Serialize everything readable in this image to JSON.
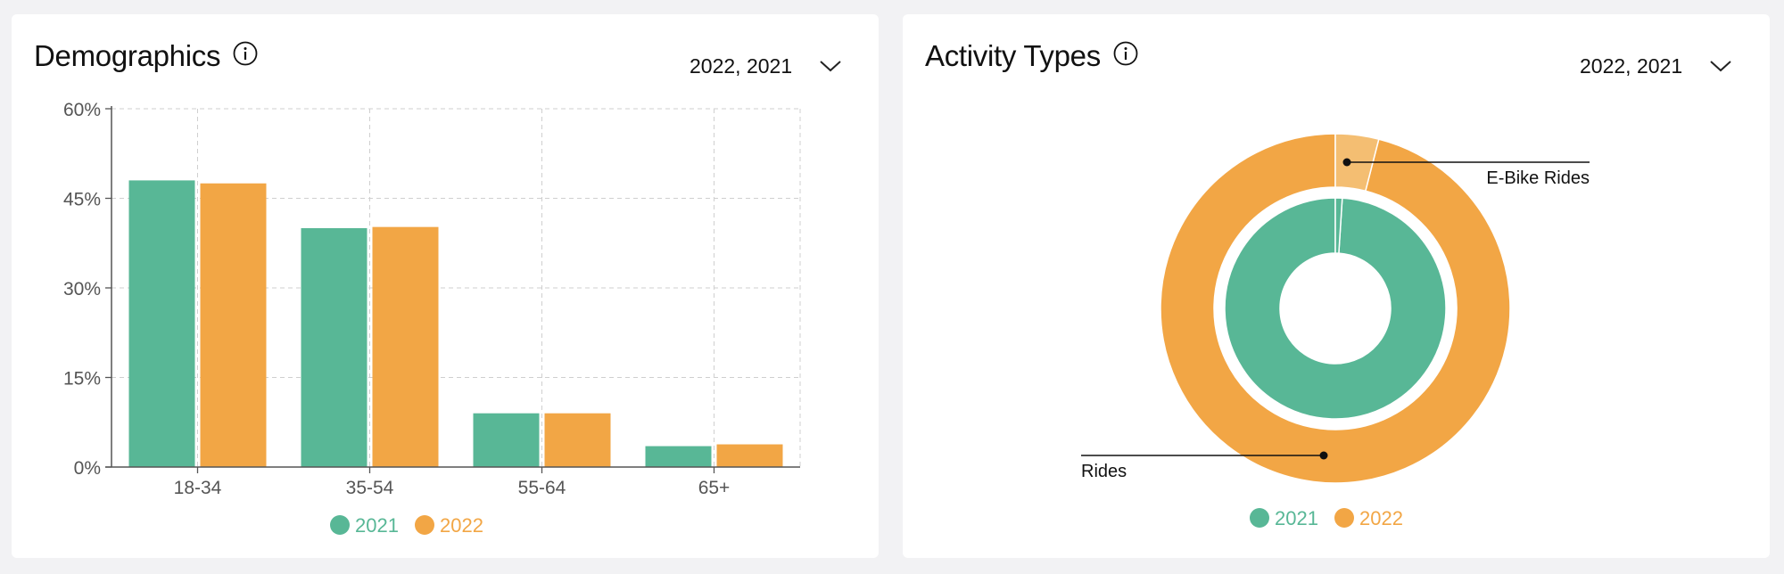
{
  "colors": {
    "c2021": "#58b796",
    "c2022": "#f2a645",
    "c2022_light": "#f4be72"
  },
  "demographics": {
    "title": "Demographics",
    "info_icon": "info-circle-icon",
    "filter_value": "2022, 2021",
    "filter_icon": "chevron-down-icon"
  },
  "activity": {
    "title": "Activity Types",
    "info_icon": "info-circle-icon",
    "filter_value": "2022, 2021",
    "filter_icon": "chevron-down-icon"
  },
  "chart_data": [
    {
      "type": "bar",
      "categories": [
        "18-34",
        "35-54",
        "55-64",
        "65+"
      ],
      "series": [
        {
          "name": "2021",
          "values": [
            48,
            40,
            9,
            3.5
          ]
        },
        {
          "name": "2022",
          "values": [
            47.5,
            40.2,
            9,
            3.8
          ]
        }
      ],
      "ylim": [
        0,
        60
      ],
      "yticks": [
        0,
        15,
        30,
        45,
        60
      ],
      "ytick_labels": [
        "0%",
        "15%",
        "30%",
        "45%",
        "60%"
      ],
      "grid": true,
      "legend": "bottom-center"
    },
    {
      "type": "pie",
      "variant": "nested-donut",
      "series": [
        {
          "name": "2021",
          "ring": "inner",
          "slices": [
            {
              "label": "Rides",
              "value": 99
            },
            {
              "label": "E-Bike Rides",
              "value": 1
            }
          ]
        },
        {
          "name": "2022",
          "ring": "outer",
          "slices": [
            {
              "label": "Rides",
              "value": 96
            },
            {
              "label": "E-Bike Rides",
              "value": 4
            }
          ]
        }
      ],
      "annotations": [
        "E-Bike Rides",
        "Rides"
      ],
      "legend": "bottom-center"
    }
  ]
}
